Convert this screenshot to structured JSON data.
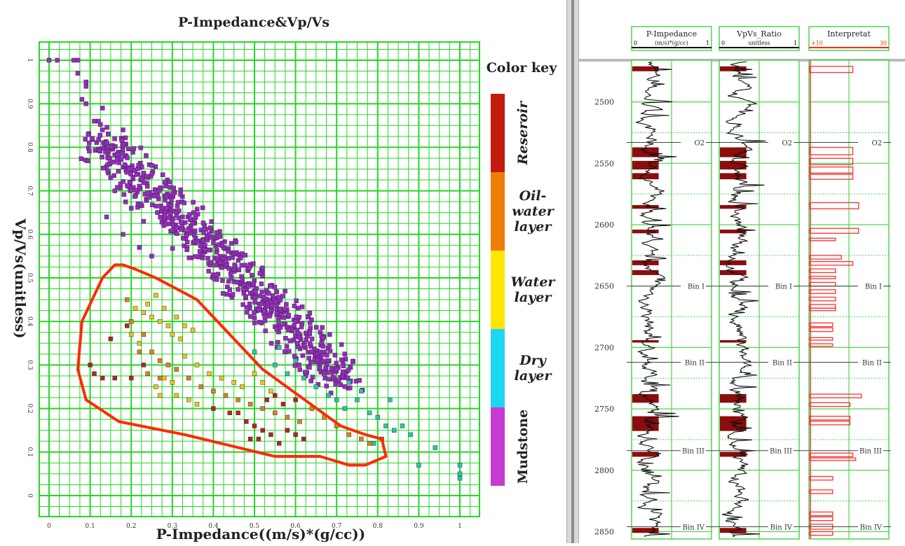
{
  "crossplot": {
    "title": "P-Impedance&Vp/Vs",
    "xlabel": "P-Impedance((m/s)*(g/cc))",
    "ylabel": "Vp/Vs(unitless)",
    "x_ticks": [
      "0",
      "0.1",
      "0.2",
      "0.3",
      "0.4",
      "0.5",
      "0.6",
      "0.7",
      "0.8",
      "0.9",
      "1"
    ],
    "y_ticks": [
      "0",
      "0.1",
      "0.2",
      "0.3",
      "0.4",
      "0.5",
      "0.6",
      "0.7",
      "0.8",
      "0.9",
      "1"
    ],
    "color_key_title": "Color key",
    "color_key": [
      {
        "label": "Reseroir",
        "color": "#c21a0b"
      },
      {
        "label": "Oil-water layer",
        "color": "#f07d0a"
      },
      {
        "label": "Water layer",
        "color": "#ffe500"
      },
      {
        "label": "Dry layer",
        "color": "#1cd6f2"
      },
      {
        "label": "Mudstone",
        "color": "#c63cd2"
      }
    ],
    "grid_color": "#26d626",
    "polygon_color": "#ff2a00"
  },
  "chart_data": {
    "type": "scatter",
    "title": "P-Impedance&Vp/Vs",
    "xlabel": "P-Impedance((m/s)*(g/cc))",
    "ylabel": "Vp/Vs(unitless)",
    "xlim": [
      0,
      1
    ],
    "ylim": [
      0,
      1
    ],
    "grid": true,
    "legend_position": "right",
    "series": [
      {
        "name": "Mudstone",
        "color": "#9b27c7",
        "cluster": {
          "x_from": 0.12,
          "x_to": 0.72,
          "y_from": 0.82,
          "y_to": 0.26
        },
        "points": [
          [
            0,
            1
          ],
          [
            0.02,
            1
          ],
          [
            0.06,
            1
          ],
          [
            0.07,
            1
          ],
          [
            0.07,
            0.97
          ],
          [
            0.09,
            0.95
          ],
          [
            0.09,
            0.94
          ],
          [
            0.08,
            0.91
          ],
          [
            0.09,
            0.9
          ],
          [
            0.11,
            0.86
          ],
          [
            0.12,
            0.86
          ],
          [
            0.13,
            0.84
          ],
          [
            0.14,
            0.81
          ],
          [
            0.13,
            0.89
          ],
          [
            0.18,
            0.84
          ],
          [
            0.15,
            0.73
          ],
          [
            0.14,
            0.64
          ],
          [
            0.16,
            0.7
          ],
          [
            0.2,
            0.66
          ],
          [
            0.23,
            0.63
          ],
          [
            0.18,
            0.6
          ],
          [
            0.22,
            0.57
          ],
          [
            0.25,
            0.55
          ],
          [
            0.68,
            0.31
          ],
          [
            0.7,
            0.29
          ],
          [
            0.66,
            0.33
          ],
          [
            0.6,
            0.4
          ],
          [
            0.64,
            0.36
          ]
        ]
      },
      {
        "name": "Dry layer",
        "color": "#26c9a6",
        "points": [
          [
            0.5,
            0.33
          ],
          [
            0.55,
            0.3
          ],
          [
            0.58,
            0.28
          ],
          [
            0.62,
            0.27
          ],
          [
            0.65,
            0.25
          ],
          [
            0.68,
            0.23
          ],
          [
            0.7,
            0.22
          ],
          [
            0.72,
            0.2
          ],
          [
            0.75,
            0.22
          ],
          [
            0.78,
            0.19
          ],
          [
            0.8,
            0.18
          ],
          [
            0.82,
            0.16
          ],
          [
            0.84,
            0.15
          ],
          [
            0.86,
            0.16
          ],
          [
            0.88,
            0.14
          ],
          [
            0.79,
            0.12
          ],
          [
            0.94,
            0.11
          ],
          [
            0.9,
            0.07
          ],
          [
            1,
            0.07
          ],
          [
            1,
            0.05
          ],
          [
            1,
            0.04
          ],
          [
            0.73,
            0.26
          ],
          [
            0.76,
            0.24
          ],
          [
            0.6,
            0.31
          ],
          [
            0.56,
            0.34
          ],
          [
            0.83,
            0.22
          ]
        ]
      },
      {
        "name": "Water layer",
        "color": "#e9c81a",
        "points": [
          [
            0.21,
            0.43
          ],
          [
            0.23,
            0.42
          ],
          [
            0.25,
            0.41
          ],
          [
            0.27,
            0.4
          ],
          [
            0.29,
            0.39
          ],
          [
            0.3,
            0.37
          ],
          [
            0.32,
            0.36
          ],
          [
            0.24,
            0.44
          ],
          [
            0.26,
            0.46
          ],
          [
            0.28,
            0.43
          ],
          [
            0.31,
            0.41
          ],
          [
            0.33,
            0.39
          ],
          [
            0.35,
            0.38
          ],
          [
            0.2,
            0.37
          ],
          [
            0.22,
            0.35
          ],
          [
            0.33,
            0.32
          ],
          [
            0.36,
            0.3
          ],
          [
            0.39,
            0.28
          ],
          [
            0.42,
            0.27
          ],
          [
            0.45,
            0.26
          ],
          [
            0.47,
            0.25
          ],
          [
            0.5,
            0.28
          ],
          [
            0.52,
            0.26
          ],
          [
            0.54,
            0.24
          ],
          [
            0.3,
            0.26
          ],
          [
            0.28,
            0.27
          ],
          [
            0.26,
            0.25
          ],
          [
            0.27,
            0.23
          ],
          [
            0.31,
            0.23
          ],
          [
            0.34,
            0.22
          ],
          [
            0.36,
            0.21
          ]
        ]
      },
      {
        "name": "Oil-water layer",
        "color": "#d8831c",
        "points": [
          [
            0.19,
            0.45
          ],
          [
            0.2,
            0.4
          ],
          [
            0.23,
            0.37
          ],
          [
            0.25,
            0.33
          ],
          [
            0.27,
            0.31
          ],
          [
            0.29,
            0.3
          ],
          [
            0.31,
            0.29
          ],
          [
            0.34,
            0.27
          ],
          [
            0.37,
            0.25
          ],
          [
            0.4,
            0.24
          ],
          [
            0.43,
            0.23
          ],
          [
            0.46,
            0.22
          ],
          [
            0.49,
            0.21
          ],
          [
            0.52,
            0.2
          ],
          [
            0.55,
            0.19
          ],
          [
            0.58,
            0.18
          ],
          [
            0.61,
            0.17
          ],
          [
            0.64,
            0.2
          ],
          [
            0.67,
            0.18
          ],
          [
            0.7,
            0.16
          ],
          [
            0.73,
            0.14
          ],
          [
            0.76,
            0.13
          ],
          [
            0.78,
            0.12
          ],
          [
            0.81,
            0.13
          ],
          [
            0.24,
            0.28
          ],
          [
            0.27,
            0.27
          ],
          [
            0.22,
            0.33
          ]
        ]
      },
      {
        "name": "Reseroir",
        "color": "#b2261d",
        "points": [
          [
            0.1,
            0.3
          ],
          [
            0.11,
            0.28
          ],
          [
            0.13,
            0.27
          ],
          [
            0.16,
            0.27
          ],
          [
            0.2,
            0.27
          ],
          [
            0.15,
            0.36
          ],
          [
            0.19,
            0.39
          ],
          [
            0.23,
            0.3
          ],
          [
            0.46,
            0.19
          ],
          [
            0.48,
            0.17
          ],
          [
            0.5,
            0.16
          ],
          [
            0.52,
            0.15
          ],
          [
            0.54,
            0.14
          ],
          [
            0.49,
            0.13
          ],
          [
            0.51,
            0.13
          ],
          [
            0.56,
            0.12
          ],
          [
            0.58,
            0.15
          ],
          [
            0.6,
            0.14
          ],
          [
            0.62,
            0.13
          ],
          [
            0.57,
            0.21
          ],
          [
            0.6,
            0.22
          ],
          [
            0.53,
            0.22
          ],
          [
            0.55,
            0.23
          ],
          [
            0.4,
            0.2
          ],
          [
            0.44,
            0.19
          ]
        ]
      }
    ],
    "polygon": [
      [
        0.18,
        0.53
      ],
      [
        0.16,
        0.53
      ],
      [
        0.13,
        0.5
      ],
      [
        0.08,
        0.4
      ],
      [
        0.07,
        0.29
      ],
      [
        0.09,
        0.22
      ],
      [
        0.17,
        0.17
      ],
      [
        0.33,
        0.14
      ],
      [
        0.55,
        0.09
      ],
      [
        0.66,
        0.09
      ],
      [
        0.73,
        0.07
      ],
      [
        0.77,
        0.07
      ],
      [
        0.82,
        0.09
      ],
      [
        0.81,
        0.13
      ],
      [
        0.77,
        0.14
      ],
      [
        0.71,
        0.16
      ],
      [
        0.52,
        0.29
      ],
      [
        0.44,
        0.37
      ],
      [
        0.36,
        0.45
      ],
      [
        0.26,
        0.5
      ],
      [
        0.21,
        0.52
      ]
    ]
  },
  "well_log": {
    "tracks": [
      {
        "name": "P-Impedance",
        "unit": "(m/s)*(g/cc)",
        "min": "0",
        "max": "1"
      },
      {
        "name": "VpVs_Ratio",
        "unit": "unitless",
        "min": "0",
        "max": "1"
      },
      {
        "name": "Interpretat",
        "unit": "",
        "min": "10",
        "max": "30"
      }
    ],
    "depth_ticks": [
      "2500",
      "2550",
      "2600",
      "2650",
      "2700",
      "2750",
      "2800",
      "2850"
    ],
    "markers": [
      {
        "label": "O2",
        "depth": 2533
      },
      {
        "label": "Bin I",
        "depth": 2650
      },
      {
        "label": "Bin II",
        "depth": 2712
      },
      {
        "label": "Bin III",
        "depth": 2784
      },
      {
        "label": "Bin IV",
        "depth": 2846
      }
    ],
    "depth_range": [
      2466,
      2856
    ],
    "reservoir_intervals": [
      [
        2471,
        2475
      ],
      [
        2537,
        2545
      ],
      [
        2548,
        2555
      ],
      [
        2558,
        2563
      ],
      [
        2584,
        2587
      ],
      [
        2604,
        2607
      ],
      [
        2629,
        2633
      ],
      [
        2637,
        2641
      ],
      [
        2694,
        2696
      ],
      [
        2738,
        2745
      ],
      [
        2756,
        2768
      ],
      [
        2785,
        2789
      ],
      [
        2847,
        2851
      ]
    ],
    "interp_bars": [
      [
        2471,
        2476,
        0.75
      ],
      [
        2537,
        2543,
        0.75
      ],
      [
        2546,
        2551,
        0.75
      ],
      [
        2553,
        2558,
        0.75
      ],
      [
        2559,
        2563,
        0.75
      ],
      [
        2582,
        2587,
        0.85
      ],
      [
        2603,
        2607,
        0.85
      ],
      [
        2611,
        2613,
        0.45
      ],
      [
        2625,
        2628,
        0.55
      ],
      [
        2630,
        2633,
        0.75
      ],
      [
        2636,
        2639,
        0.45
      ],
      [
        2642,
        2644,
        0.45
      ],
      [
        2647,
        2650,
        0.45
      ],
      [
        2653,
        2656,
        0.45
      ],
      [
        2659,
        2662,
        0.45
      ],
      [
        2665,
        2668,
        0.45
      ],
      [
        2668,
        2670,
        0.45
      ],
      [
        2680,
        2683,
        0.4
      ],
      [
        2684,
        2687,
        0.4
      ],
      [
        2692,
        2694,
        0.4
      ],
      [
        2697,
        2699,
        0.4
      ],
      [
        2738,
        2741,
        0.9
      ],
      [
        2745,
        2748,
        0.7
      ],
      [
        2756,
        2759,
        0.7
      ],
      [
        2760,
        2763,
        0.7
      ],
      [
        2786,
        2789,
        0.75
      ],
      [
        2790,
        2792,
        0.8
      ],
      [
        2805,
        2808,
        0.4
      ],
      [
        2816,
        2819,
        0.4
      ],
      [
        2834,
        2837,
        0.4
      ],
      [
        2838,
        2841,
        0.4
      ],
      [
        2844,
        2848,
        0.4
      ],
      [
        2850,
        2853,
        0.4
      ]
    ]
  }
}
